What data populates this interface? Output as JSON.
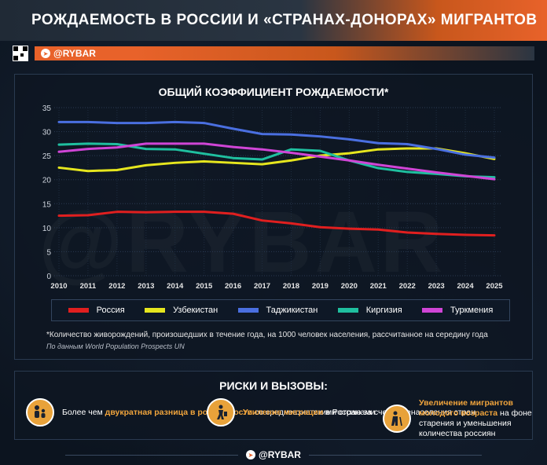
{
  "header": {
    "title": "РОЖДАЕМОСТЬ В РОССИИ И «СТРАНАХ-ДОНОРАХ» МИГРАНТОВ",
    "brand": "@RYBAR"
  },
  "watermark": "@RYBAR",
  "chart_data": {
    "type": "line",
    "title": "ОБЩИЙ КОЭФФИЦИЕНТ РОЖДАЕМОСТИ*",
    "xlabel": "",
    "ylabel": "",
    "ylim": [
      0,
      35
    ],
    "yticks": [
      0,
      5,
      10,
      15,
      20,
      25,
      30,
      35
    ],
    "grid": true,
    "legend_position": "bottom",
    "x": [
      "2010",
      "2011",
      "2012",
      "2013",
      "2014",
      "2015",
      "2016",
      "2017",
      "2018",
      "2019",
      "2020",
      "2021",
      "2022",
      "2023",
      "2024",
      "2025"
    ],
    "series": [
      {
        "name": "Россия",
        "color": "#e01f1f",
        "values": [
          12.5,
          12.6,
          13.3,
          13.2,
          13.3,
          13.3,
          12.9,
          11.5,
          10.9,
          10.1,
          9.8,
          9.6,
          9.0,
          8.7,
          8.5,
          8.4
        ]
      },
      {
        "name": "Узбекистан",
        "color": "#e6e61e",
        "values": [
          22.5,
          21.8,
          22.0,
          23.0,
          23.5,
          23.8,
          23.5,
          23.2,
          24.0,
          25.0,
          25.5,
          26.3,
          26.5,
          26.5,
          25.5,
          24.3
        ]
      },
      {
        "name": "Таджикистан",
        "color": "#4a6fe0",
        "values": [
          32.0,
          32.0,
          31.8,
          31.8,
          32.0,
          31.8,
          30.6,
          29.5,
          29.4,
          29.0,
          28.4,
          27.6,
          27.4,
          26.4,
          25.2,
          24.6
        ]
      },
      {
        "name": "Киргизия",
        "color": "#1fbf9f",
        "values": [
          27.3,
          27.5,
          27.4,
          26.4,
          26.3,
          25.4,
          24.5,
          24.2,
          26.3,
          26.0,
          24.0,
          22.4,
          21.6,
          21.2,
          20.7,
          20.5
        ]
      },
      {
        "name": "Туркмения",
        "color": "#d045d6",
        "values": [
          25.8,
          26.4,
          26.7,
          27.5,
          27.5,
          27.5,
          26.8,
          26.3,
          25.6,
          24.8,
          24.0,
          23.1,
          22.3,
          21.5,
          20.8,
          20.1
        ]
      }
    ]
  },
  "footnote": "*Количество живорождений, произошедших в течение года, на 1000 человек населения, рассчитанное на середину года",
  "source": "По данным World Population Prospects UN",
  "risks": {
    "title": "РИСКИ И ВЫЗОВЫ:",
    "items": [
      {
        "icon": "family-icon",
        "pre": "Более чем ",
        "hl": "двукратная разница в рождаемости",
        "post": " со среднеазиатскими странами"
      },
      {
        "icon": "migration-icon",
        "pre": "",
        "hl": "Усиление миграции",
        "post": " в Россию за счет перенаселения стран"
      },
      {
        "icon": "elderly-icon",
        "pre": "",
        "hl": "Увеличение мигрантов молодого возраста",
        "post": " на фоне старения и уменьшения количества россиян"
      }
    ]
  },
  "footer": {
    "brand": "@RYBAR"
  }
}
